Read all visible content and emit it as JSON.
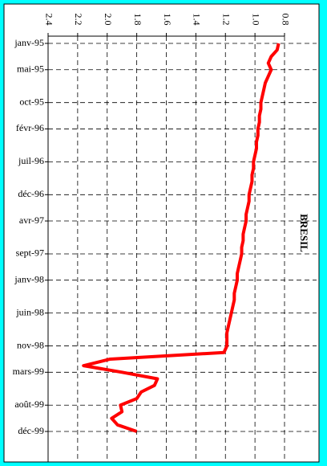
{
  "chart_data": {
    "type": "line",
    "title": "BRESIL",
    "x": [
      "1995-01",
      "1995-02",
      "1995-03",
      "1995-04",
      "1995-05",
      "1995-06",
      "1995-07",
      "1995-08",
      "1995-09",
      "1995-10",
      "1995-11",
      "1995-12",
      "1996-01",
      "1996-02",
      "1996-03",
      "1996-04",
      "1996-05",
      "1996-06",
      "1996-07",
      "1996-08",
      "1996-09",
      "1996-10",
      "1996-11",
      "1996-12",
      "1997-01",
      "1997-02",
      "1997-03",
      "1997-04",
      "1997-05",
      "1997-06",
      "1997-07",
      "1997-08",
      "1997-09",
      "1997-10",
      "1997-11",
      "1997-12",
      "1998-01",
      "1998-02",
      "1998-03",
      "1998-04",
      "1998-05",
      "1998-06",
      "1998-07",
      "1998-08",
      "1998-09",
      "1998-10",
      "1998-11",
      "1998-12",
      "1999-01",
      "1999-02",
      "1999-03",
      "1999-04",
      "1999-05",
      "1999-06",
      "1999-07",
      "1999-08",
      "1999-09",
      "1999-10",
      "1999-11",
      "1999-12"
    ],
    "series": [
      {
        "name": "BRESIL",
        "color": "#ff0000",
        "values": [
          0.84,
          0.85,
          0.89,
          0.91,
          0.89,
          0.91,
          0.93,
          0.94,
          0.95,
          0.96,
          0.96,
          0.97,
          0.97,
          0.98,
          0.98,
          0.99,
          0.99,
          1.0,
          1.01,
          1.01,
          1.02,
          1.02,
          1.03,
          1.04,
          1.04,
          1.05,
          1.06,
          1.06,
          1.07,
          1.08,
          1.08,
          1.09,
          1.09,
          1.1,
          1.11,
          1.12,
          1.12,
          1.13,
          1.14,
          1.14,
          1.15,
          1.16,
          1.17,
          1.18,
          1.19,
          1.19,
          1.19,
          1.21,
          1.98,
          2.16,
          1.9,
          1.66,
          1.68,
          1.77,
          1.8,
          1.91,
          1.9,
          1.97,
          1.93,
          1.8
        ]
      }
    ],
    "xticks": [
      {
        "value": "1995-01",
        "label": "janv-95"
      },
      {
        "value": "1995-05",
        "label": "mai-95"
      },
      {
        "value": "1995-10",
        "label": "oct-95"
      },
      {
        "value": "1996-02",
        "label": "févr-96"
      },
      {
        "value": "1996-07",
        "label": "juil-96"
      },
      {
        "value": "1996-12",
        "label": "déc-96"
      },
      {
        "value": "1997-04",
        "label": "avr-97"
      },
      {
        "value": "1997-09",
        "label": "sept-97"
      },
      {
        "value": "1998-01",
        "label": "janv-98"
      },
      {
        "value": "1998-06",
        "label": "juin-98"
      },
      {
        "value": "1998-11",
        "label": "nov-98"
      },
      {
        "value": "1999-03",
        "label": "mars-99"
      },
      {
        "value": "1999-08",
        "label": "août-99"
      },
      {
        "value": "1999-12",
        "label": "déc-99"
      }
    ],
    "ylim": [
      2.4,
      0.8
    ],
    "yticks": [
      2.4,
      2.2,
      {
        "value": 2,
        "label": "2.0"
      },
      1.8,
      1.6,
      1.4,
      1.2,
      {
        "value": 1,
        "label": "1.0"
      },
      0.8
    ],
    "grid": true
  }
}
